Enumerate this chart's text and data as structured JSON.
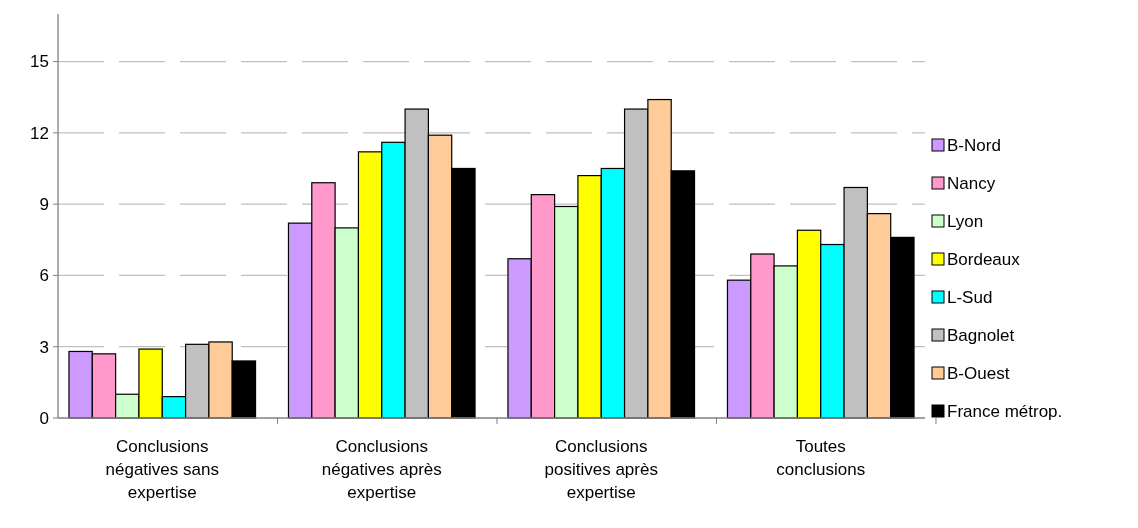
{
  "chart_data": {
    "type": "bar",
    "categories": [
      "Conclusions négatives sans expertise",
      "Conclusions négatives après expertise",
      "Conclusions positives après expertise",
      "Toutes conclusions"
    ],
    "series": [
      {
        "name": "B-Nord",
        "color": "#cc99ff",
        "values": [
          2.8,
          8.2,
          6.7,
          5.8
        ]
      },
      {
        "name": "Nancy",
        "color": "#ff99cc",
        "values": [
          2.7,
          9.9,
          9.4,
          6.9
        ]
      },
      {
        "name": "Lyon",
        "color": "#ccffcc",
        "values": [
          1.0,
          8.0,
          8.9,
          6.4
        ]
      },
      {
        "name": "Bordeaux",
        "color": "#ffff00",
        "values": [
          2.9,
          11.2,
          10.2,
          7.9
        ]
      },
      {
        "name": "L-Sud",
        "color": "#00ffff",
        "values": [
          0.9,
          11.6,
          10.5,
          7.3
        ]
      },
      {
        "name": "Bagnolet",
        "color": "#c0c0c0",
        "values": [
          3.1,
          13.0,
          13.0,
          9.7
        ]
      },
      {
        "name": "B-Ouest",
        "color": "#ffcc99",
        "values": [
          3.2,
          11.9,
          13.4,
          8.6
        ]
      },
      {
        "name": "France métrop.",
        "color": "#000000",
        "values": [
          2.4,
          10.5,
          10.4,
          7.6
        ]
      }
    ],
    "ylim": [
      0,
      17
    ],
    "yticks": [
      0,
      3,
      6,
      9,
      12,
      15
    ],
    "grid": "y",
    "legend": "right"
  }
}
